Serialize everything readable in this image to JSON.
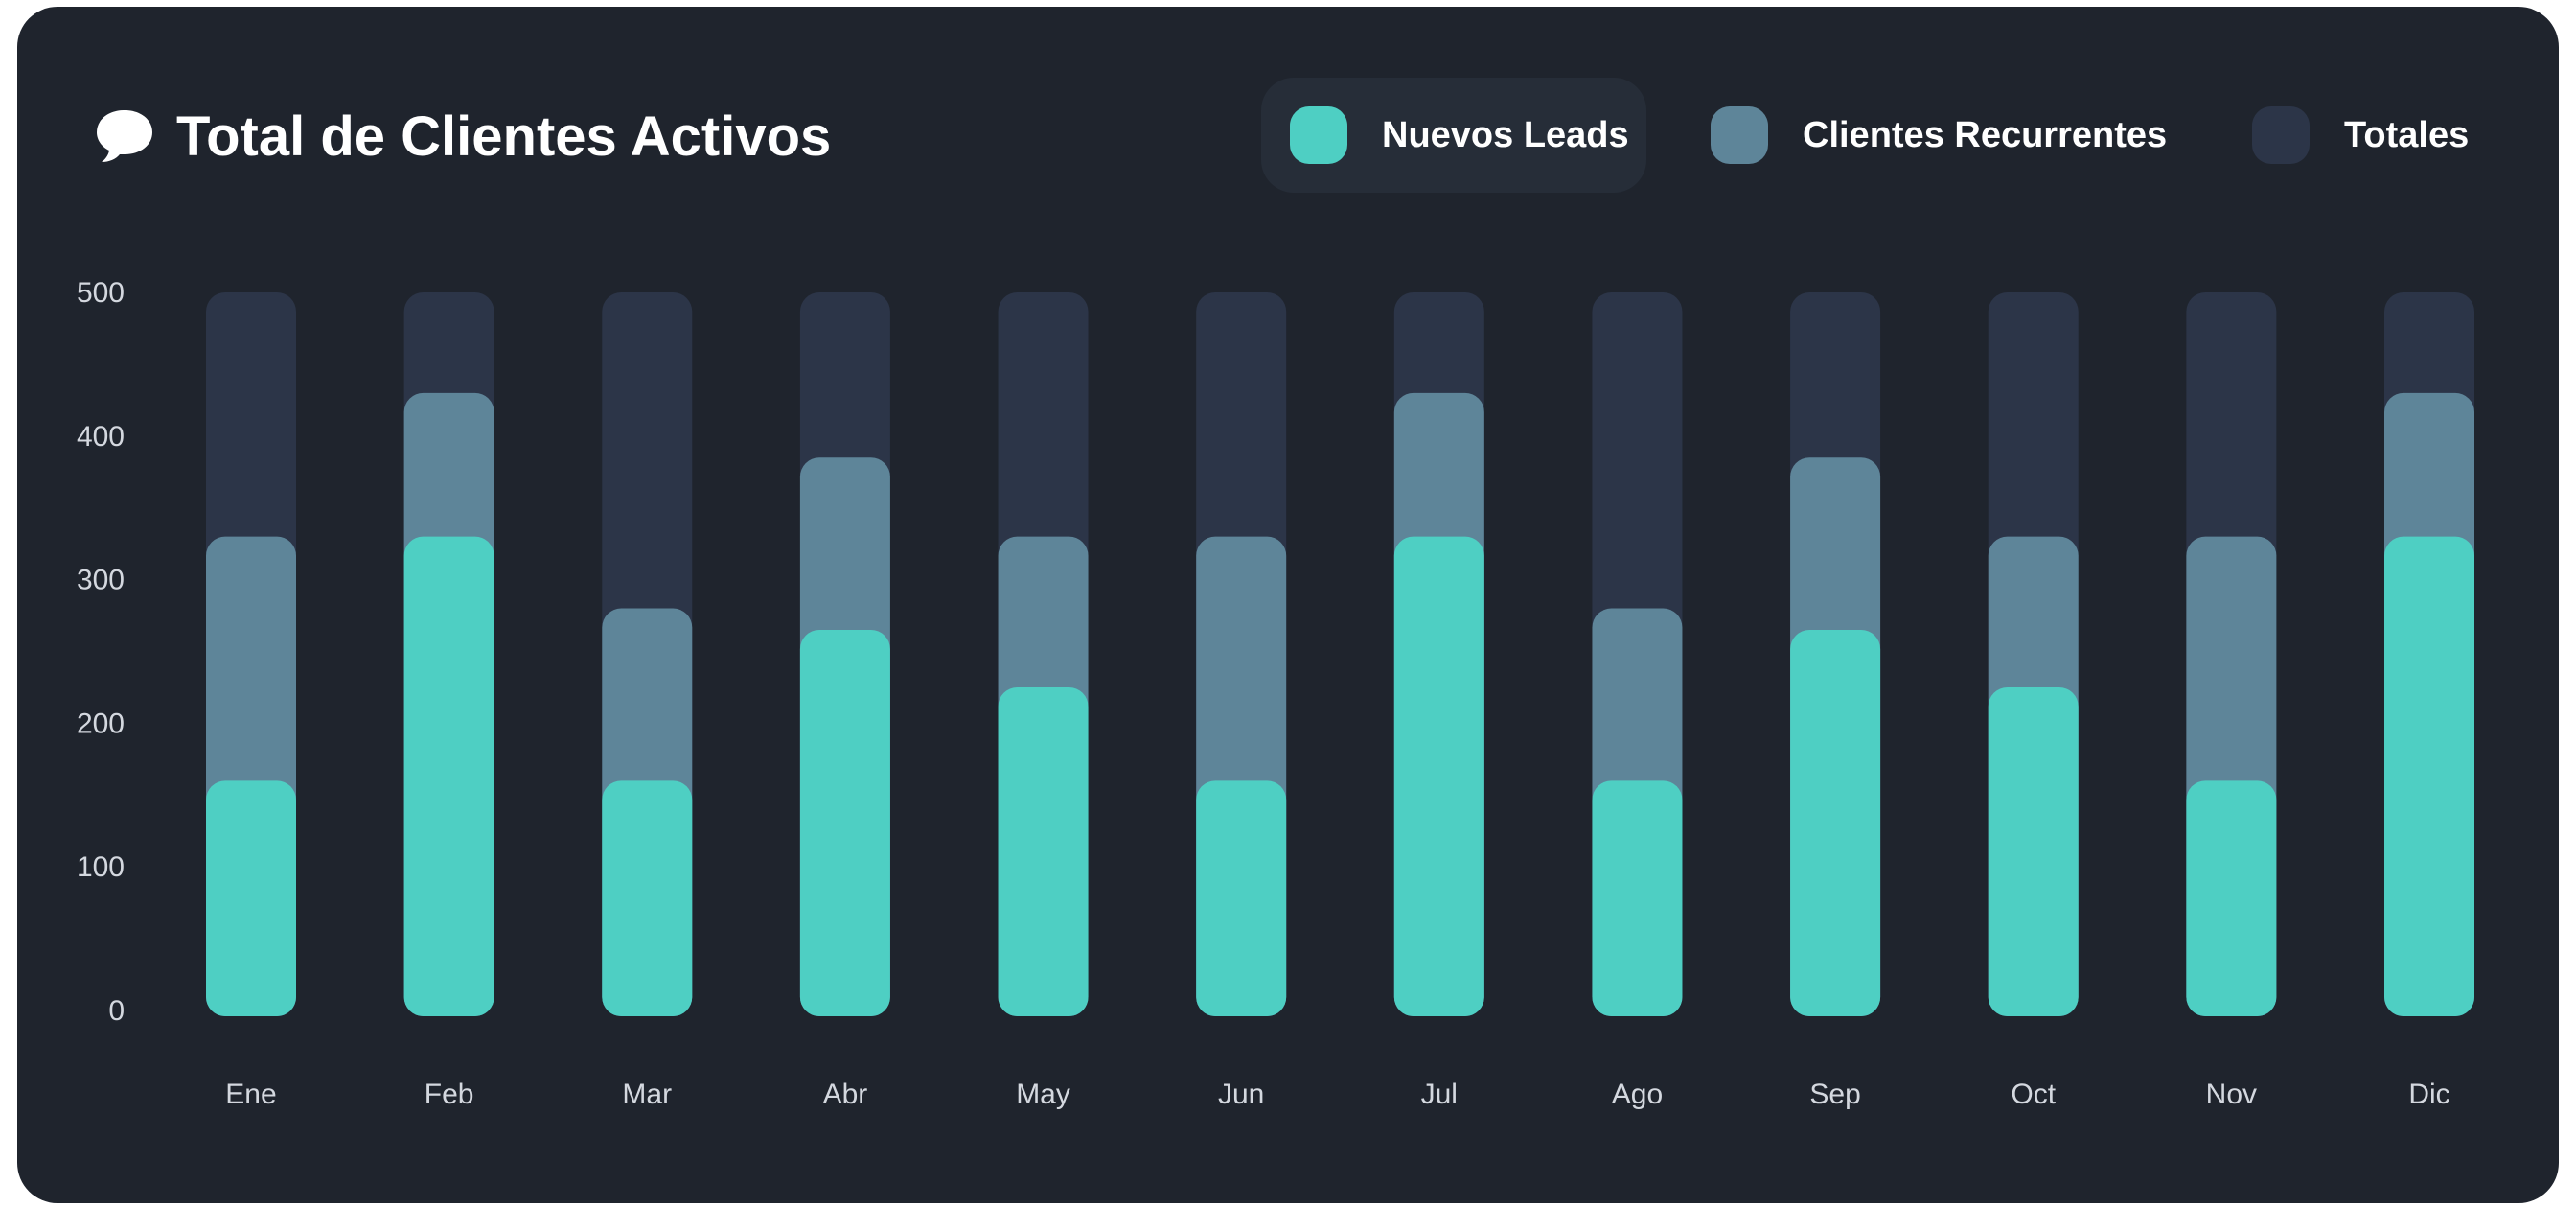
{
  "header": {
    "title": "Total de Clientes Activos",
    "icon": "speech-bubble-icon"
  },
  "legend": [
    {
      "label": "Nuevos Leads",
      "color": "#4ecfc3",
      "active": true
    },
    {
      "label": "Clientes Recurrentes",
      "color": "#5e8599",
      "active": false
    },
    {
      "label": "Totales",
      "color": "#2c3548",
      "active": false
    }
  ],
  "colors": {
    "background": "#1f242d",
    "nuevos": "#4ecfc3",
    "recurrentes": "#5e8599",
    "totales": "#2c3548",
    "text": "#ffffff",
    "tick": "#d4d8df"
  },
  "chart_data": {
    "type": "bar",
    "stacked": true,
    "title": "Total de Clientes Activos",
    "xlabel": "",
    "ylabel": "",
    "ylim": [
      0,
      500
    ],
    "yticks": [
      0,
      100,
      200,
      300,
      400,
      500
    ],
    "grid": false,
    "legend_position": "top-right",
    "categories": [
      "Ene",
      "Feb",
      "Mar",
      "Abr",
      "May",
      "Jun",
      "Jul",
      "Ago",
      "Sep",
      "Oct",
      "Nov",
      "Dic"
    ],
    "series": [
      {
        "name": "Nuevos Leads",
        "values": [
          160,
          330,
          160,
          265,
          225,
          160,
          330,
          160,
          265,
          225,
          160,
          330
        ]
      },
      {
        "name": "Clientes Recurrentes",
        "values": [
          170,
          100,
          120,
          120,
          105,
          170,
          100,
          120,
          120,
          105,
          170,
          100
        ]
      },
      {
        "name": "Totales",
        "values": [
          170,
          70,
          220,
          115,
          170,
          170,
          70,
          220,
          115,
          170,
          170,
          70
        ]
      }
    ]
  }
}
